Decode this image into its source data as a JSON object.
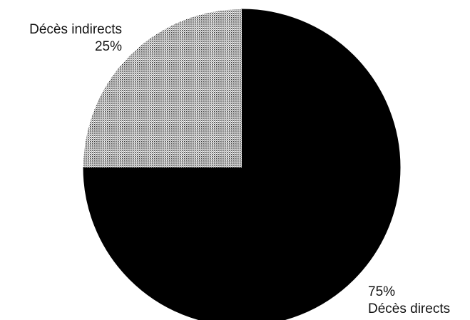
{
  "chart_data": {
    "type": "pie",
    "title": "",
    "slices": [
      {
        "label": "Décès directs",
        "value": 75,
        "value_label": "75%",
        "color": "#000000",
        "fill": "solid"
      },
      {
        "label": "Décès indirects",
        "value": 25,
        "value_label": "25%",
        "color": "#9a9a9a",
        "fill": "dotted-pattern"
      }
    ],
    "start_angle_deg": 0,
    "direction": "clockwise",
    "legend": "none"
  }
}
